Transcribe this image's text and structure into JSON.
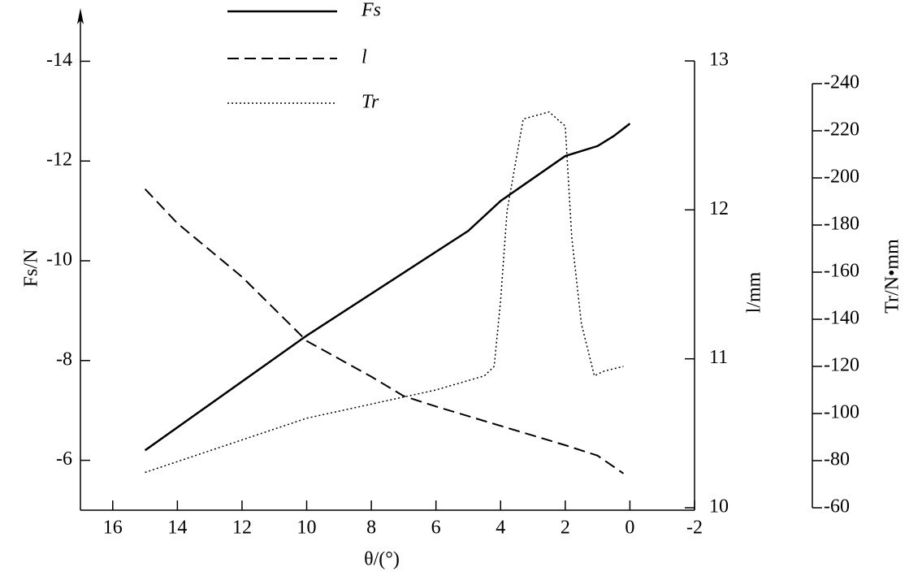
{
  "chart_data": {
    "type": "line",
    "xlabel": "θ/(°)",
    "ylabel": "Fs/N",
    "y2label": "l/mm",
    "y3label": "Tr/N•mm",
    "xlim": [
      17,
      -2
    ],
    "xticks": [
      16,
      14,
      12,
      10,
      8,
      6,
      4,
      2,
      0,
      -2
    ],
    "ylim": [
      -5,
      -15
    ],
    "yticks": [
      -14,
      -12,
      -10,
      -8,
      -6
    ],
    "y2lim": [
      10,
      13
    ],
    "y2ticks": [
      13,
      12,
      11,
      10
    ],
    "y3lim": [
      -60,
      -240
    ],
    "y3ticks": [
      -240,
      -220,
      -200,
      -180,
      -160,
      -140,
      -120,
      -100,
      -80,
      -60
    ],
    "series": [
      {
        "name": "Fs",
        "color": "#000000",
        "style": "solid",
        "axis": "y",
        "x": [
          15,
          10,
          5,
          4,
          2,
          1,
          0.5,
          0
        ],
        "values": [
          -6.2,
          -8.5,
          -10.6,
          -11.2,
          -12.1,
          -12.3,
          -12.5,
          -12.75
        ]
      },
      {
        "name": "l",
        "color": "#000000",
        "style": "dashed",
        "axis": "y2",
        "x": [
          15,
          14,
          12,
          10,
          8,
          7,
          6,
          4,
          2,
          1,
          0.2
        ],
        "values": [
          12.14,
          11.91,
          11.55,
          11.12,
          10.88,
          10.75,
          10.68,
          10.55,
          10.42,
          10.35,
          10.23
        ]
      },
      {
        "name": "Tr",
        "color": "#000000",
        "style": "dotted",
        "axis": "y3",
        "x": [
          15,
          10,
          6,
          4.5,
          4.2,
          4,
          3.8,
          3.3,
          2.5,
          2,
          1.8,
          1.5,
          1.1,
          0.8,
          0.2
        ],
        "values": [
          -75,
          -98,
          -110,
          -116,
          -120,
          -148,
          -186,
          -225,
          -228,
          -222,
          -175,
          -138,
          -116,
          -118,
          -120
        ]
      }
    ]
  }
}
